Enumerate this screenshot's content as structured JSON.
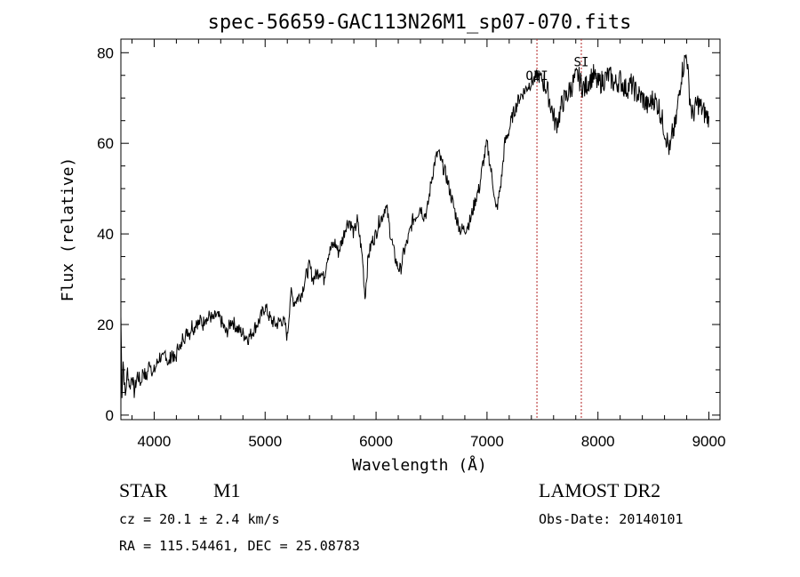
{
  "chart_data": {
    "type": "line",
    "title": "spec-56659-GAC113N26M1_sp07-070.fits",
    "xlabel": "Wavelength (Å)",
    "ylabel": "Flux (relative)",
    "xlim": [
      3700,
      9100
    ],
    "ylim": [
      -1,
      83
    ],
    "x_ticks": [
      4000,
      5000,
      6000,
      7000,
      8000,
      9000
    ],
    "y_ticks": [
      0,
      20,
      40,
      60,
      80
    ],
    "grid": false,
    "line_color": "#000000",
    "marker_color": "#b22222",
    "series": [
      {
        "x": [
          3700,
          3710,
          3720,
          3740,
          3760,
          3780,
          3800,
          3820,
          3850,
          3880,
          3900,
          3930,
          3960,
          3990,
          4020,
          4050,
          4080,
          4100,
          4130,
          4160,
          4180,
          4200,
          4220,
          4240,
          4260,
          4280,
          4300,
          4320,
          4340,
          4360,
          4380,
          4400,
          4420,
          4440,
          4460,
          4480,
          4500,
          4530,
          4560,
          4600,
          4650,
          4700,
          4750,
          4800,
          4850,
          4900,
          4950,
          5000,
          5050,
          5100,
          5150,
          5180,
          5200,
          5230,
          5260,
          5300,
          5330,
          5360,
          5400,
          5430,
          5460,
          5500,
          5530,
          5560,
          5600,
          5630,
          5660,
          5700,
          5730,
          5760,
          5800,
          5830,
          5860,
          5880,
          5900,
          5930,
          5960,
          6000,
          6030,
          6060,
          6080,
          6100,
          6130,
          6160,
          6190,
          6220,
          6250,
          6280,
          6300,
          6330,
          6360,
          6400,
          6430,
          6460,
          6500,
          6530,
          6560,
          6600,
          6630,
          6660,
          6700,
          6730,
          6760,
          6800,
          6850,
          6900,
          6930,
          6960,
          7000,
          7030,
          7060,
          7080,
          7100,
          7130,
          7160,
          7200,
          7230,
          7260,
          7290,
          7320,
          7350,
          7380,
          7420,
          7460,
          7500,
          7540,
          7580,
          7620,
          7650,
          7680,
          7710,
          7750,
          7790,
          7820,
          7850,
          7880,
          7920,
          7960,
          8000,
          8050,
          8100,
          8150,
          8200,
          8250,
          8300,
          8350,
          8400,
          8450,
          8500,
          8550,
          8600,
          8650,
          8670,
          8700,
          8750,
          8800,
          8820,
          8850,
          8900,
          8950,
          8980,
          9000
        ],
        "y": [
          22,
          5,
          12,
          4,
          10,
          6,
          9,
          5,
          9,
          7,
          10,
          8,
          12,
          9,
          11,
          13,
          12,
          14,
          11,
          14,
          12,
          13,
          16,
          14,
          18,
          17,
          19,
          18,
          20,
          19,
          21,
          20,
          21,
          20,
          22,
          21,
          22,
          21,
          22,
          21,
          18,
          21,
          19,
          18,
          17,
          19,
          21,
          24,
          21,
          20,
          21,
          20,
          17,
          27,
          25,
          26,
          27,
          30,
          33,
          30,
          31,
          32,
          30,
          35,
          37,
          38,
          36,
          39,
          42,
          43,
          40,
          43,
          38,
          34,
          26,
          35,
          38,
          40,
          43,
          44,
          46,
          45,
          40,
          36,
          33,
          32,
          36,
          38,
          40,
          43,
          44,
          46,
          44,
          45,
          52,
          56,
          58,
          55,
          53,
          50,
          46,
          43,
          41,
          41,
          43,
          48,
          50,
          55,
          60,
          55,
          50,
          45,
          47,
          52,
          60,
          63,
          66,
          68,
          70,
          71,
          72,
          73,
          74,
          75,
          74,
          72,
          68,
          64,
          66,
          69,
          70,
          72,
          74,
          75,
          73,
          72,
          74,
          75,
          73,
          74,
          75,
          73,
          74,
          72,
          73,
          71,
          70,
          68,
          70,
          68,
          63,
          58,
          62,
          64,
          75,
          80,
          72,
          66,
          69,
          67,
          66,
          66
        ]
      }
    ],
    "markers": [
      {
        "x": 7450,
        "label": "OII",
        "label_y": 74
      },
      {
        "x": 7850,
        "label": "SI",
        "label_y": 77
      }
    ]
  },
  "footer": {
    "obj_class": "STAR",
    "subclass": "M1",
    "survey": "LAMOST DR2",
    "velocity": "cz = 20.1 ± 2.4 km/s",
    "obs_date": "Obs-Date: 20140101",
    "coords": "RA = 115.54461, DEC =  25.08783"
  }
}
